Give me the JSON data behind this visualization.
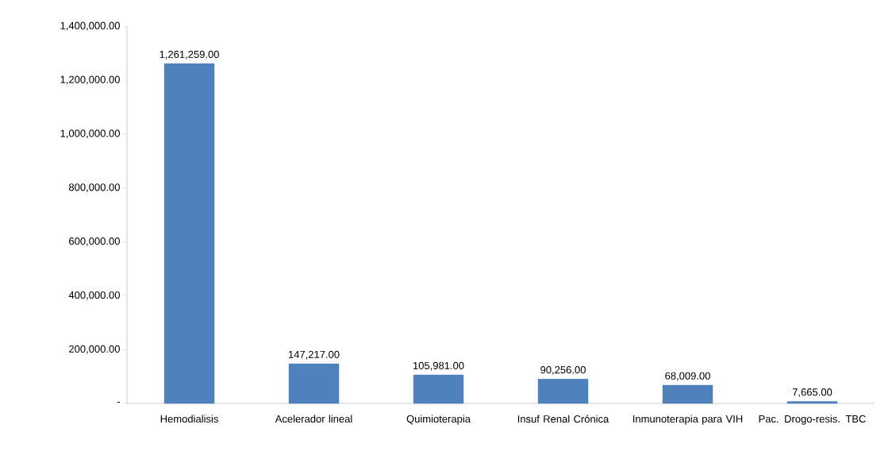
{
  "chart_data": {
    "type": "bar",
    "categories": [
      "Hemodialisis",
      "Acelerador lineal",
      "Quimioterapia",
      "Insuf Renal Crónica",
      "Inmunoterapia para VIH",
      "Pac. Drogo-resis. TBC"
    ],
    "values": [
      1261259,
      147217,
      105981,
      90256,
      68009,
      7665
    ],
    "value_labels": [
      "1,261,259.00",
      "147,217.00",
      "105,981.00",
      "90,256.00",
      "68,009.00",
      "7,665.00"
    ],
    "color": "#4f81bd",
    "ylim": [
      0,
      1400000
    ],
    "yticks": [
      {
        "value": 0,
        "label": "-"
      },
      {
        "value": 200000,
        "label": "200,000.00"
      },
      {
        "value": 400000,
        "label": "400,000.00"
      },
      {
        "value": 600000,
        "label": "600,000.00"
      },
      {
        "value": 800000,
        "label": "800,000.00"
      },
      {
        "value": 1000000,
        "label": "1,000,000.00"
      },
      {
        "value": 1200000,
        "label": "1,200,000.00"
      },
      {
        "value": 1400000,
        "label": "1,400,000.00"
      }
    ],
    "grid": false
  }
}
